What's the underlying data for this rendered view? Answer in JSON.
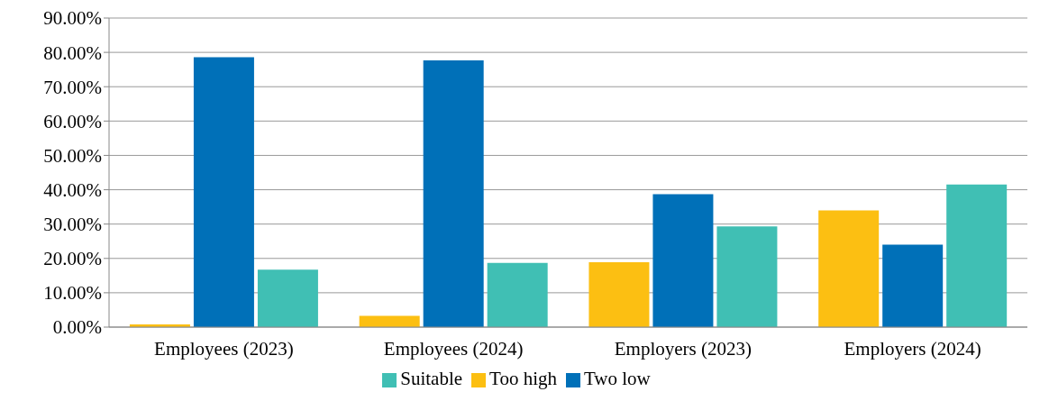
{
  "chart_data": {
    "type": "bar",
    "categories": [
      "Employees (2023)",
      "Employees (2024)",
      "Employers (2023)",
      "Employers (2024)"
    ],
    "series": [
      {
        "name": "Too high",
        "color": "#fcbf12",
        "values": [
          0.8,
          3.3,
          18.9,
          34.0
        ]
      },
      {
        "name": "Two low",
        "color": "#0070b8",
        "values": [
          78.6,
          77.7,
          38.7,
          24.0
        ]
      },
      {
        "name": "Suitable",
        "color": "#40bfb4",
        "values": [
          16.7,
          18.7,
          29.3,
          41.5
        ]
      }
    ],
    "ylim": [
      0,
      90
    ],
    "yticks": [
      {
        "value": 0,
        "label": "0.00%"
      },
      {
        "value": 10,
        "label": "10.00%"
      },
      {
        "value": 20,
        "label": "20.00%"
      },
      {
        "value": 30,
        "label": "30.00%"
      },
      {
        "value": 40,
        "label": "40.00%"
      },
      {
        "value": 50,
        "label": "50.00%"
      },
      {
        "value": 60,
        "label": "60.00%"
      },
      {
        "value": 70,
        "label": "70.00%"
      },
      {
        "value": 80,
        "label": "80.00%"
      },
      {
        "value": 90,
        "label": "90.00%"
      }
    ],
    "grid": "y",
    "legend": "bottom"
  }
}
